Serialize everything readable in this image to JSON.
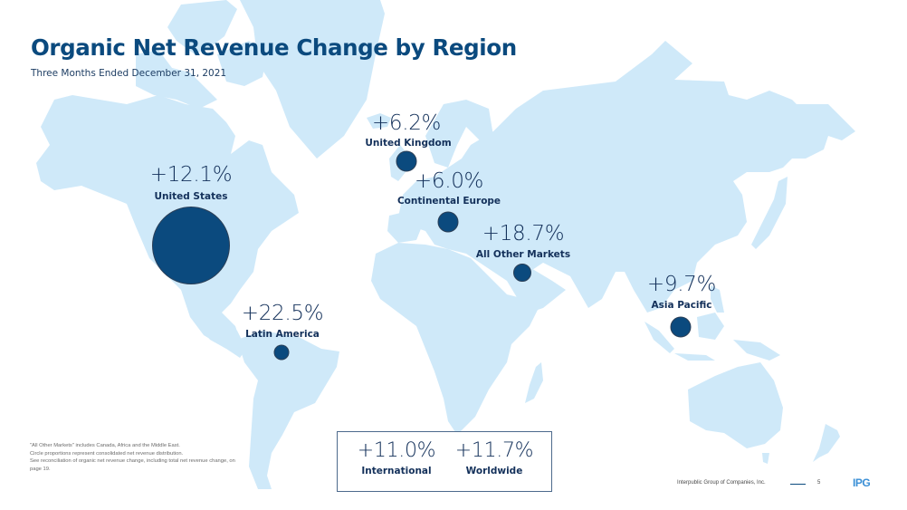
{
  "header": {
    "title": "Organic Net Revenue Change by Region",
    "subtitle": "Three Months Ended December 31, 2021"
  },
  "colors": {
    "land": "#cfe9f9",
    "bubble": "#0b4a7e",
    "title": "#0b4a7e",
    "text": "#13305a",
    "logo": "#3a8fd6"
  },
  "chart_data": {
    "type": "bubble-map",
    "title": "Organic Net Revenue Change by Region",
    "subtitle": "Three Months Ended December 31, 2021",
    "value_unit": "% organic net revenue change",
    "bubble_size_meaning": "Circle proportions represent consolidated net revenue distribution",
    "regions": [
      {
        "name": "United States",
        "change": "+12.1%",
        "value": 12.1,
        "relative_size": "large"
      },
      {
        "name": "United Kingdom",
        "change": "+6.2%",
        "value": 6.2,
        "relative_size": "small"
      },
      {
        "name": "Continental Europe",
        "change": "+6.0%",
        "value": 6.0,
        "relative_size": "small"
      },
      {
        "name": "All Other Markets",
        "change": "+18.7%",
        "value": 18.7,
        "relative_size": "small"
      },
      {
        "name": "Latin America",
        "change": "+22.5%",
        "value": 22.5,
        "relative_size": "smallest"
      },
      {
        "name": "Asia Pacific",
        "change": "+9.7%",
        "value": 9.7,
        "relative_size": "small"
      }
    ],
    "summary": [
      {
        "name": "International",
        "change": "+11.0%",
        "value": 11.0
      },
      {
        "name": "Worldwide",
        "change": "+11.7%",
        "value": 11.7
      }
    ]
  },
  "footnote": {
    "lines": [
      "\"All Other Markets\" includes Canada, Africa and the Middle East.",
      "Circle proportions represent consolidated net revenue distribution.",
      "See reconciliation of organic net revenue change, including total net revenue change, on page 19."
    ]
  },
  "footer": {
    "company": "Interpublic Group of Companies, Inc.",
    "page": "5",
    "logo": "IPG"
  }
}
